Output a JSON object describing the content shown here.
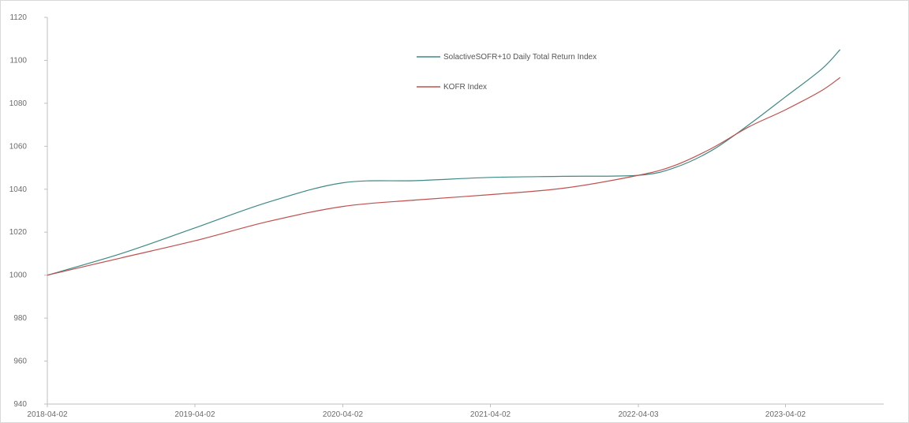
{
  "chart_data": {
    "type": "line",
    "title": "",
    "xlabel": "",
    "ylabel": "",
    "x_ticks": [
      "2018-04-02",
      "2019-04-02",
      "2020-04-02",
      "2021-04-02",
      "2022-04-03",
      "2023-04-02"
    ],
    "y_ticks": [
      "940",
      "960",
      "980",
      "1000",
      "1020",
      "1040",
      "1060",
      "1080",
      "1100",
      "1120"
    ],
    "ylim": [
      940,
      1120
    ],
    "grid": false,
    "legend_position": "top-center",
    "series": [
      {
        "name": "SolactiveSOFR+10 Daily Total Return Index",
        "color": "#3e8a86",
        "points": [
          [
            "2018-04-02",
            1000
          ],
          [
            "2018-10-01",
            1010
          ],
          [
            "2019-04-02",
            1022
          ],
          [
            "2019-10-01",
            1034
          ],
          [
            "2020-04-02",
            1043
          ],
          [
            "2020-10-01",
            1044
          ],
          [
            "2021-04-02",
            1045.5
          ],
          [
            "2021-10-01",
            1046
          ],
          [
            "2022-04-03",
            1046.5
          ],
          [
            "2022-07-01",
            1050
          ],
          [
            "2022-10-01",
            1058
          ],
          [
            "2023-01-01",
            1070
          ],
          [
            "2023-04-02",
            1083
          ],
          [
            "2023-07-01",
            1096
          ],
          [
            "2023-08-15",
            1105
          ]
        ]
      },
      {
        "name": "KOFR Index",
        "color": "#c0504d",
        "points": [
          [
            "2018-04-02",
            1000
          ],
          [
            "2018-10-01",
            1008
          ],
          [
            "2019-04-02",
            1016
          ],
          [
            "2019-10-01",
            1025
          ],
          [
            "2020-04-02",
            1032
          ],
          [
            "2020-10-01",
            1035
          ],
          [
            "2021-04-02",
            1037.5
          ],
          [
            "2021-10-01",
            1040.5
          ],
          [
            "2022-04-03",
            1046.5
          ],
          [
            "2022-07-01",
            1051
          ],
          [
            "2022-10-01",
            1059
          ],
          [
            "2023-01-01",
            1069
          ],
          [
            "2023-04-02",
            1077
          ],
          [
            "2023-07-01",
            1086
          ],
          [
            "2023-08-15",
            1092
          ]
        ]
      }
    ]
  }
}
